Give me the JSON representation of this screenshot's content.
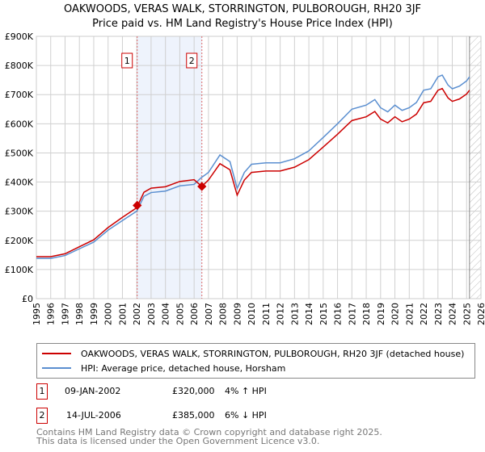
{
  "chart_data": {
    "type": "line",
    "title": "OAKWOODS, VERAS WALK, STORRINGTON, PULBOROUGH, RH20 3JF",
    "subtitle": "Price paid vs. HM Land Registry's House Price Index (HPI)",
    "xlim": [
      1995,
      2026
    ],
    "ylim": [
      0,
      900000
    ],
    "y_ticks": [
      "£0",
      "£100K",
      "£200K",
      "£300K",
      "£400K",
      "£500K",
      "£600K",
      "£700K",
      "£800K",
      "£900K"
    ],
    "x_ticks": [
      "1995",
      "1996",
      "1997",
      "1998",
      "1999",
      "2000",
      "2001",
      "2002",
      "2003",
      "2004",
      "2005",
      "2006",
      "2007",
      "2008",
      "2009",
      "2010",
      "2011",
      "2012",
      "2013",
      "2014",
      "2015",
      "2016",
      "2017",
      "2018",
      "2019",
      "2020",
      "2021",
      "2022",
      "2023",
      "2024",
      "2025",
      "2026"
    ],
    "grid": true,
    "series": [
      {
        "name": "OAKWOODS, VERAS WALK, STORRINGTON, PULBOROUGH, RH20 3JF (detached house)",
        "color": "#cc0000",
        "x": [
          1995,
          1996,
          1997,
          1998,
          1999,
          2000,
          2001,
          2002,
          2002.5,
          2003,
          2004,
          2005,
          2006,
          2006.54,
          2007,
          2007.8,
          2008.5,
          2009,
          2009.5,
          2010,
          2011,
          2012,
          2013,
          2014,
          2015,
          2016,
          2017,
          2018,
          2018.6,
          2019,
          2019.5,
          2020,
          2020.5,
          2021,
          2021.5,
          2022,
          2022.5,
          2023,
          2023.3,
          2023.7,
          2024,
          2024.5,
          2025,
          2025.2
        ],
        "values": [
          144,
          144,
          154,
          178,
          202,
          244,
          279,
          312,
          365,
          379,
          384,
          402,
          408,
          385,
          407,
          463,
          442,
          355,
          407,
          433,
          438,
          438,
          451,
          477,
          520,
          564,
          611,
          624,
          642,
          616,
          603,
          624,
          607,
          616,
          633,
          672,
          677,
          715,
          721,
          689,
          677,
          685,
          702,
          715
        ]
      },
      {
        "name": "HPI: Average price, detached house, Horsham",
        "color": "#5b8fd0",
        "x": [
          1995,
          1996,
          1997,
          1998,
          1999,
          2000,
          2001,
          2002,
          2002.5,
          2003,
          2004,
          2005,
          2006,
          2006.5,
          2007,
          2007.8,
          2008.5,
          2009,
          2009.5,
          2010,
          2011,
          2012,
          2013,
          2014,
          2015,
          2016,
          2017,
          2018,
          2018.6,
          2019,
          2019.5,
          2020,
          2020.5,
          2021,
          2021.5,
          2022,
          2022.5,
          2023,
          2023.3,
          2023.7,
          2024,
          2024.5,
          2025,
          2025.2
        ],
        "values": [
          138,
          138,
          148,
          171,
          194,
          235,
          268,
          300,
          351,
          364,
          369,
          387,
          392,
          415,
          433,
          493,
          470,
          378,
          433,
          461,
          466,
          466,
          480,
          507,
          553,
          600,
          650,
          664,
          683,
          655,
          641,
          664,
          646,
          655,
          673,
          715,
          720,
          761,
          767,
          733,
          720,
          729,
          747,
          761
        ]
      }
    ],
    "value_unit": "£ thousands",
    "sales": [
      {
        "label": "1",
        "x": 2002.03,
        "value": 320
      },
      {
        "label": "2",
        "x": 2006.54,
        "value": 385
      }
    ],
    "shaded_range": [
      2002.03,
      2006.54
    ],
    "forecast_hatch_from": 2025.2,
    "legend_position": "below"
  },
  "transactions": [
    {
      "num": "1",
      "date": "09-JAN-2002",
      "price": "£320,000",
      "hpi": "4% ↑ HPI"
    },
    {
      "num": "2",
      "date": "14-JUL-2006",
      "price": "£385,000",
      "hpi": "6% ↓ HPI"
    }
  ],
  "footer": {
    "line1": "Contains HM Land Registry data © Crown copyright and database right 2025.",
    "line2": "This data is licensed under the Open Government Licence v3.0."
  }
}
